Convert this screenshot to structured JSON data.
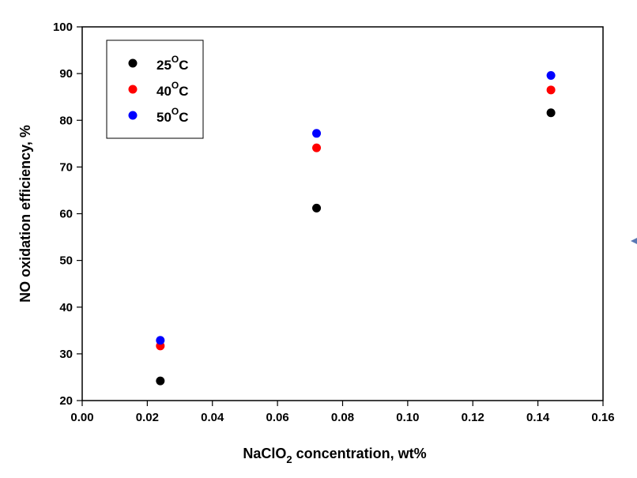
{
  "chart_data": {
    "type": "scatter",
    "xlabel": {
      "prefix": "NaClO",
      "subscript": "2",
      "suffix": " concentration, wt%"
    },
    "ylabel": "NO oxidation efficiency, %",
    "xlim": [
      0.0,
      0.16
    ],
    "ylim": [
      20,
      100
    ],
    "x_ticks": [
      "0.00",
      "0.02",
      "0.04",
      "0.06",
      "0.08",
      "0.10",
      "0.12",
      "0.14",
      "0.16"
    ],
    "y_ticks": [
      "20",
      "30",
      "40",
      "50",
      "60",
      "70",
      "80",
      "90",
      "100"
    ],
    "grid": false,
    "legend_position": "top-left",
    "series": [
      {
        "name": {
          "main": "25",
          "sup": "O",
          "unit": "C"
        },
        "color": "#000000",
        "points": [
          {
            "x": 0.024,
            "y": 24.2
          },
          {
            "x": 0.072,
            "y": 61.2
          },
          {
            "x": 0.144,
            "y": 81.6
          }
        ]
      },
      {
        "name": {
          "main": "40",
          "sup": "O",
          "unit": "C"
        },
        "color": "#ff0000",
        "points": [
          {
            "x": 0.024,
            "y": 31.7
          },
          {
            "x": 0.072,
            "y": 74.1
          },
          {
            "x": 0.144,
            "y": 86.5
          }
        ]
      },
      {
        "name": {
          "main": "50",
          "sup": "O",
          "unit": "C"
        },
        "color": "#0000ff",
        "points": [
          {
            "x": 0.024,
            "y": 32.9
          },
          {
            "x": 0.072,
            "y": 77.2
          },
          {
            "x": 0.144,
            "y": 89.6
          }
        ]
      }
    ]
  }
}
